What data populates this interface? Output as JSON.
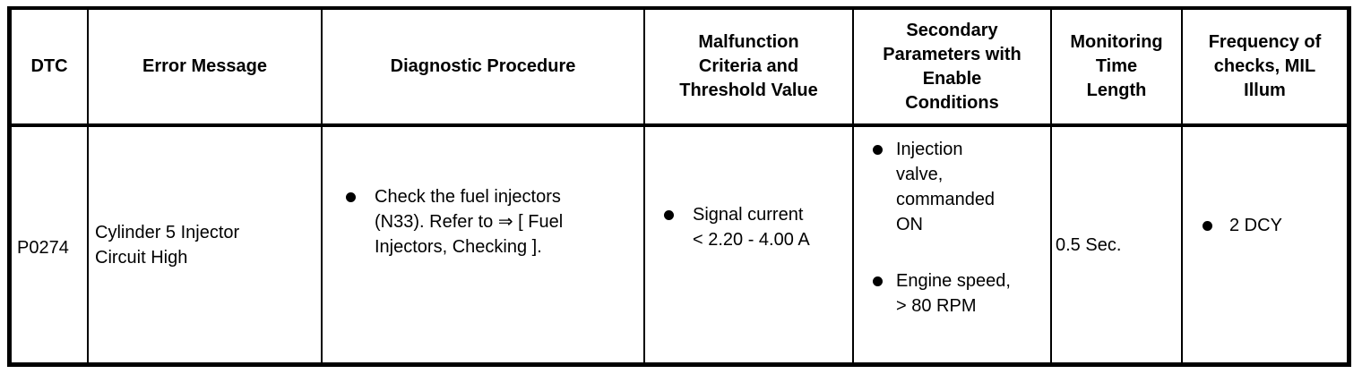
{
  "colors": {
    "background": "#FFFFFF",
    "border": "#000000",
    "text": "#000000",
    "bullet": "#000000"
  },
  "table": {
    "headers": [
      {
        "lines": [
          "DTC"
        ]
      },
      {
        "lines": [
          "Error Message"
        ]
      },
      {
        "lines": [
          "Diagnostic Procedure"
        ]
      },
      {
        "lines": [
          "Malfunction",
          "Criteria and",
          "Threshold Value"
        ]
      },
      {
        "lines": [
          "Secondary",
          "Parameters with",
          "Enable",
          "Conditions"
        ]
      },
      {
        "lines": [
          "Monitoring",
          "Time",
          "Length"
        ]
      },
      {
        "lines": [
          "Frequency of",
          "checks, MIL",
          "Illum"
        ]
      }
    ],
    "row": {
      "dtc": "P0274",
      "error_message": {
        "lines": [
          "Cylinder 5 Injector",
          "Circuit High"
        ]
      },
      "diagnostic_procedure": {
        "items": [
          {
            "lines": [
              "Check the fuel injectors",
              "(N33). Refer to ⇒ [ Fuel",
              "Injectors, Checking ]."
            ]
          }
        ]
      },
      "malfunction_criteria": {
        "items": [
          {
            "lines": [
              "Signal current",
              "< 2.20 - 4.00 A"
            ]
          }
        ]
      },
      "secondary_parameters": {
        "items": [
          {
            "lines": [
              "Injection",
              "valve,",
              "commanded",
              "ON"
            ]
          },
          {
            "lines": [
              "Engine speed,",
              "> 80 RPM"
            ]
          }
        ]
      },
      "monitoring_time": "0.5 Sec.",
      "frequency_checks": {
        "items": [
          {
            "lines": [
              "2 DCY"
            ]
          }
        ]
      }
    }
  }
}
